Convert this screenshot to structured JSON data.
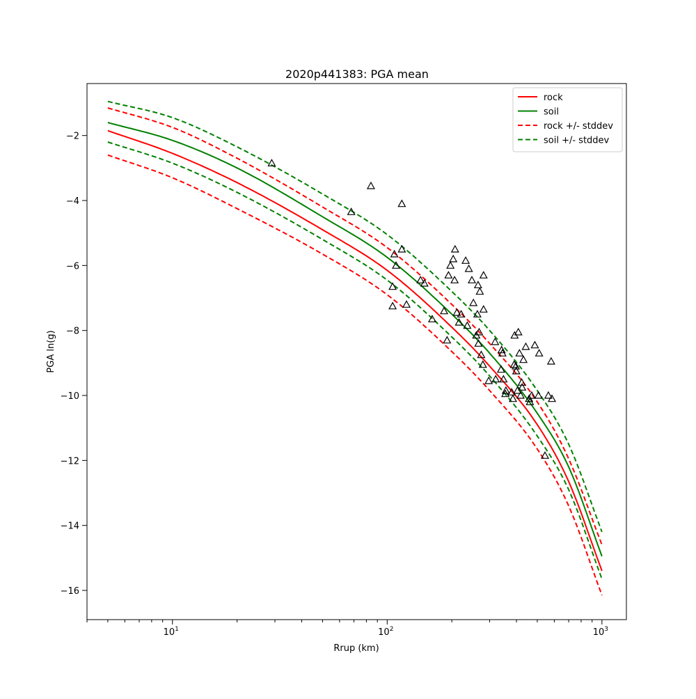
{
  "chart_data": {
    "type": "line",
    "title": "2020p441383: PGA mean",
    "xlabel": "Rrup (km)",
    "ylabel": "PGA ln(g)",
    "xscale": "log",
    "xlim": [
      4,
      1300
    ],
    "ylim": [
      -16.9,
      -0.4
    ],
    "x_ticks": [
      {
        "value": 10,
        "base": "10",
        "exp": "1"
      },
      {
        "value": 100,
        "base": "10",
        "exp": "2"
      },
      {
        "value": 1000,
        "base": "10",
        "exp": "3"
      }
    ],
    "y_ticks": [
      {
        "value": -2,
        "label": "−2"
      },
      {
        "value": -4,
        "label": "−4"
      },
      {
        "value": -6,
        "label": "−6"
      },
      {
        "value": -8,
        "label": "−8"
      },
      {
        "value": -10,
        "label": "−10"
      },
      {
        "value": -12,
        "label": "−12"
      },
      {
        "value": -14,
        "label": "−14"
      },
      {
        "value": -16,
        "label": "−16"
      }
    ],
    "legend_position": "top-right",
    "grid": false,
    "series": [
      {
        "name": "rock",
        "color": "#ff0000",
        "style": "solid",
        "x": [
          5,
          10,
          20,
          50,
          100,
          200,
          300,
          500,
          700,
          1000
        ],
        "y": [
          -1.85,
          -2.55,
          -3.45,
          -4.9,
          -6.15,
          -7.9,
          -9.1,
          -10.9,
          -12.65,
          -15.4
        ]
      },
      {
        "name": "soil",
        "color": "#008000",
        "style": "solid",
        "x": [
          5,
          10,
          20,
          50,
          100,
          200,
          300,
          500,
          700,
          1000
        ],
        "y": [
          -1.6,
          -2.15,
          -3.0,
          -4.5,
          -5.75,
          -7.5,
          -8.7,
          -10.55,
          -12.2,
          -14.95
        ]
      },
      {
        "name": "rock +/- stddev",
        "color": "#ff0000",
        "style": "dashed",
        "x": [
          5,
          10,
          20,
          50,
          100,
          200,
          300,
          500,
          700,
          1000
        ],
        "y": [
          -1.15,
          -1.75,
          -2.7,
          -4.2,
          -5.45,
          -7.2,
          -8.4,
          -10.2,
          -11.95,
          -14.6
        ]
      },
      {
        "name": "",
        "color": "#ff0000",
        "style": "dashed",
        "x": [
          5,
          10,
          20,
          50,
          100,
          200,
          300,
          500,
          700,
          1000
        ],
        "y": [
          -2.6,
          -3.3,
          -4.25,
          -5.65,
          -6.9,
          -8.65,
          -9.85,
          -11.65,
          -13.4,
          -16.15
        ]
      },
      {
        "name": "soil +/- stddev",
        "color": "#008000",
        "style": "dashed",
        "x": [
          5,
          10,
          20,
          50,
          100,
          200,
          300,
          500,
          700,
          1000
        ],
        "y": [
          -0.95,
          -1.45,
          -2.35,
          -3.8,
          -5.05,
          -6.8,
          -8.0,
          -9.85,
          -11.5,
          -14.2
        ]
      },
      {
        "name": "",
        "color": "#008000",
        "style": "dashed",
        "x": [
          5,
          10,
          20,
          50,
          100,
          200,
          300,
          500,
          700,
          1000
        ],
        "y": [
          -2.2,
          -2.85,
          -3.75,
          -5.2,
          -6.45,
          -8.2,
          -9.4,
          -11.25,
          -12.9,
          -15.65
        ]
      }
    ],
    "observations": {
      "marker": "triangle",
      "x": [
        29,
        68,
        84,
        117,
        117,
        108,
        110,
        106,
        106,
        123,
        143,
        149,
        162,
        184,
        190,
        193,
        197,
        203,
        206,
        207,
        211,
        216,
        221,
        232,
        236,
        240,
        248,
        252,
        260,
        263,
        265,
        266,
        268,
        270,
        274,
        279,
        281,
        281,
        297,
        318,
        320,
        339,
        341,
        344,
        348,
        355,
        357,
        380,
        385,
        390,
        392,
        397,
        399,
        404,
        408,
        413,
        418,
        423,
        425,
        431,
        442,
        458,
        462,
        471,
        487,
        506,
        510,
        543,
        563,
        580,
        585
      ],
      "y": [
        -2.85,
        -4.35,
        -3.55,
        -4.1,
        -5.5,
        -5.65,
        -6.0,
        -6.65,
        -7.25,
        -7.2,
        -6.45,
        -6.55,
        -7.65,
        -7.4,
        -8.3,
        -6.3,
        -6.0,
        -5.8,
        -6.45,
        -5.5,
        -7.45,
        -7.75,
        -7.5,
        -5.85,
        -7.85,
        -6.1,
        -6.45,
        -7.15,
        -8.15,
        -7.5,
        -6.6,
        -8.4,
        -8.05,
        -6.8,
        -8.75,
        -9.05,
        -7.35,
        -6.3,
        -9.55,
        -8.35,
        -9.5,
        -9.2,
        -8.6,
        -8.7,
        -9.5,
        -9.95,
        -9.85,
        -9.9,
        -10.1,
        -9.05,
        -8.15,
        -9.1,
        -9.25,
        -9.85,
        -8.05,
        -8.7,
        -10.0,
        -9.6,
        -9.75,
        -8.9,
        -8.5,
        -10.1,
        -10.2,
        -10.0,
        -8.45,
        -10.0,
        -8.7,
        -11.85,
        -10.0,
        -8.95,
        -10.1
      ]
    }
  }
}
